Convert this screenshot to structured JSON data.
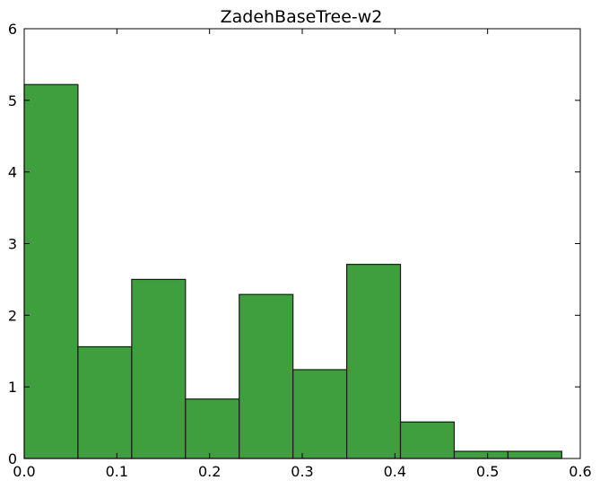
{
  "chart_data": {
    "type": "bar",
    "title": "ZadehBaseTree-w2",
    "xlabel": "",
    "ylabel": "",
    "xlim": [
      0.0,
      0.6
    ],
    "ylim": [
      0,
      6
    ],
    "bins": [
      {
        "x0": 0.0,
        "x1": 0.058,
        "value": 5.22
      },
      {
        "x0": 0.058,
        "x1": 0.116,
        "value": 1.56
      },
      {
        "x0": 0.116,
        "x1": 0.174,
        "value": 2.5
      },
      {
        "x0": 0.174,
        "x1": 0.232,
        "value": 0.83
      },
      {
        "x0": 0.232,
        "x1": 0.29,
        "value": 2.29
      },
      {
        "x0": 0.29,
        "x1": 0.348,
        "value": 1.24
      },
      {
        "x0": 0.348,
        "x1": 0.406,
        "value": 2.71
      },
      {
        "x0": 0.406,
        "x1": 0.464,
        "value": 0.51
      },
      {
        "x0": 0.464,
        "x1": 0.522,
        "value": 0.1
      },
      {
        "x0": 0.522,
        "x1": 0.58,
        "value": 0.1
      }
    ],
    "xticks": [
      0.0,
      0.1,
      0.2,
      0.3,
      0.4,
      0.5,
      0.6
    ],
    "xtick_labels": [
      "0.0",
      "0.1",
      "0.2",
      "0.3",
      "0.4",
      "0.5",
      "0.6"
    ],
    "yticks": [
      0,
      1,
      2,
      3,
      4,
      5,
      6
    ],
    "ytick_labels": [
      "0",
      "1",
      "2",
      "3",
      "4",
      "5",
      "6"
    ],
    "bar_color": "#3f9f3f",
    "edge_color": "#1a1a1a",
    "grid": false,
    "legend": "none"
  }
}
